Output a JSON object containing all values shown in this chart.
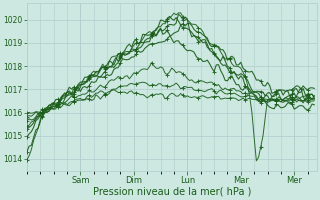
{
  "bg_color": "#cce8e0",
  "grid_color": "#b0cccc",
  "line_color": "#1a5c1a",
  "xlabel": "Pression niveau de la mer( hPa )",
  "ylim": [
    1013.5,
    1020.7
  ],
  "yticks": [
    1014,
    1015,
    1016,
    1017,
    1018,
    1019,
    1020
  ],
  "day_labels": [
    "Sam",
    "Dim",
    "Lun",
    "Mar",
    "Mer"
  ],
  "day_positions": [
    24,
    48,
    72,
    96,
    120
  ],
  "xlim": [
    0,
    130
  ],
  "n_hours": 130
}
